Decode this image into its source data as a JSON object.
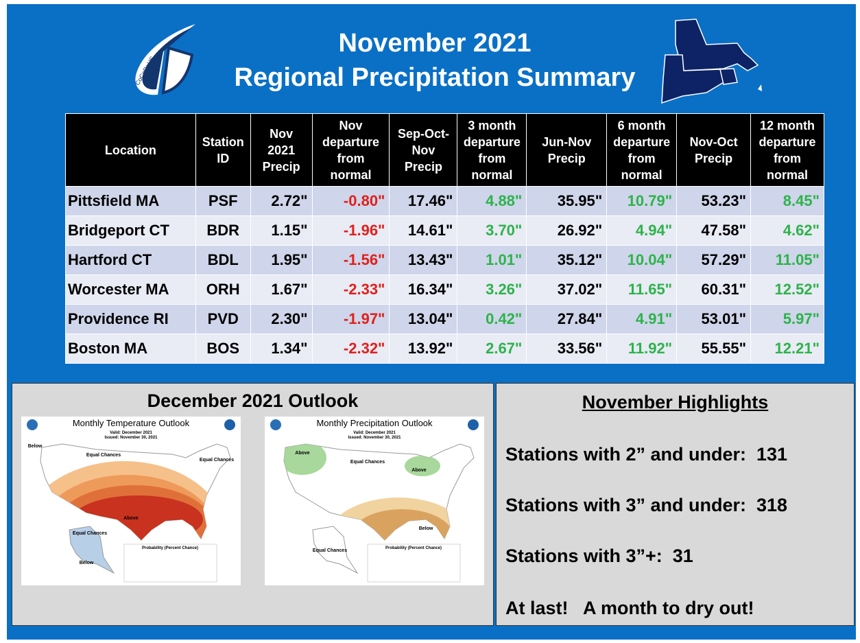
{
  "header": {
    "logo_text": "CoCoRaHS",
    "title_line1": "November 2021",
    "title_line2": "Regional Precipitation Summary"
  },
  "table": {
    "columns": [
      "Location",
      "Station\nID",
      "Nov\n2021\nPrecip",
      "Nov\ndeparture\nfrom\nnormal",
      "Sep-Oct-\nNov\nPrecip",
      "3 month\ndeparture\nfrom\nnormal",
      "Jun-Nov\nPrecip",
      "6 month\ndeparture\nfrom\nnormal",
      "Nov-Oct\nPrecip",
      "12 month\ndeparture\nfrom\nnormal"
    ],
    "rows": [
      [
        "Pittsfield MA",
        "PSF",
        "2.72\"",
        "-0.80\"",
        "17.46\"",
        "4.88\"",
        "35.95\"",
        "10.79\"",
        "53.23\"",
        "8.45\""
      ],
      [
        "Bridgeport CT",
        "BDR",
        "1.15\"",
        "-1.96\"",
        "14.61\"",
        "3.70\"",
        "26.92\"",
        "4.94\"",
        "47.58\"",
        "4.62\""
      ],
      [
        "Hartford CT",
        "BDL",
        "1.95\"",
        "-1.56\"",
        "13.43\"",
        "1.01\"",
        "35.12\"",
        "10.04\"",
        "57.29\"",
        "11.05\""
      ],
      [
        "Worcester MA",
        "ORH",
        "1.67\"",
        "-2.33\"",
        "16.34\"",
        "3.26\"",
        "37.02\"",
        "11.65\"",
        "60.31\"",
        "12.52\""
      ],
      [
        "Providence RI",
        "PVD",
        "2.30\"",
        "-1.97\"",
        "13.04\"",
        "0.42\"",
        "27.84\"",
        "4.91\"",
        "53.01\"",
        "5.97\""
      ],
      [
        "Boston MA",
        "BOS",
        "1.34\"",
        "-2.32\"",
        "13.92\"",
        "2.67\"",
        "33.56\"",
        "11.92\"",
        "55.55\"",
        "12.21\""
      ]
    ]
  },
  "outlook": {
    "title": "December 2021 Outlook",
    "maps": [
      {
        "title": "Monthly Temperature Outlook",
        "valid": "Valid: December 2021",
        "issued": "Issued: November 30, 2021",
        "legend": "Probability (Percent Chance)",
        "labels": [
          "Below",
          "Equal Chances",
          "Equal Chances",
          "Above",
          "Equal Chances",
          "Below"
        ]
      },
      {
        "title": "Monthly Precipitation Outlook",
        "valid": "Valid: December 2021",
        "issued": "Issued: November 30, 2021",
        "legend": "Probability (Percent Chance)",
        "labels": [
          "Above",
          "Equal Chances",
          "Above",
          "Below",
          "Equal Chances"
        ]
      }
    ]
  },
  "highlights": {
    "title": "November Highlights",
    "items": [
      "Stations with 2” and under:  131",
      "Stations with 3” and under:  318",
      "Stations with 3”+:  31",
      "At last!   A month to dry out!"
    ]
  }
}
